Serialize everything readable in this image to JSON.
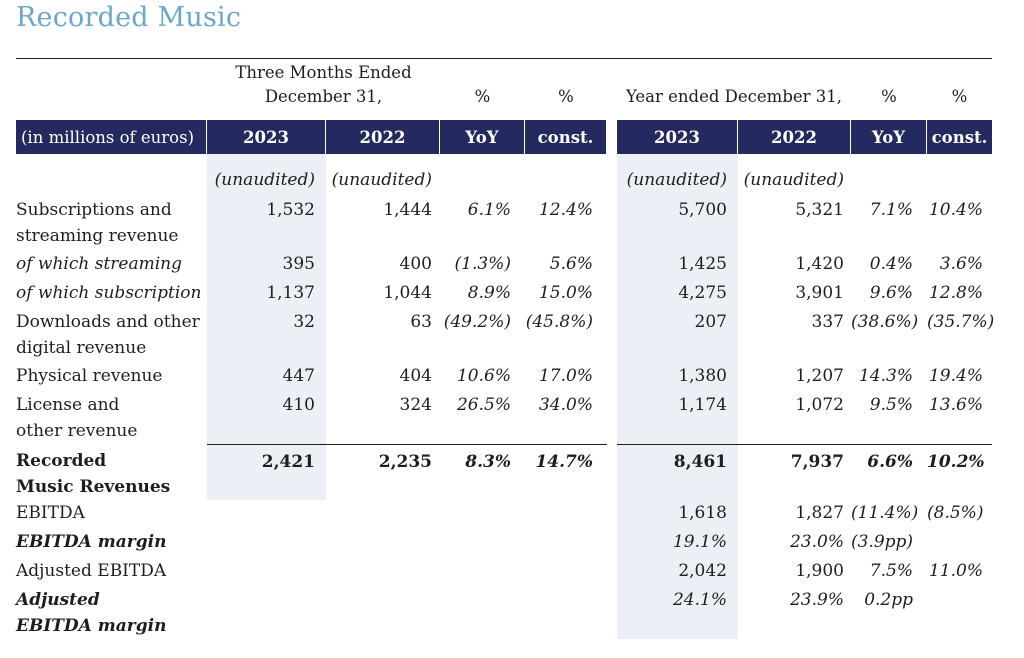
{
  "page_title": "Recorded Music",
  "colors": {
    "title_accent": "#6BA7C8",
    "header_bg": "#242A60",
    "header_text": "#FFFFFF",
    "column_shade": "#EAF0F5",
    "body_text": "#1E1E1C"
  },
  "table": {
    "unit_label": "(in millions of euros)",
    "spanners": {
      "quarter_line1": "Three Months Ended",
      "quarter_line2": "December 31,",
      "year": "Year ended December 31,",
      "pct": "%"
    },
    "columns": [
      "2023",
      "2022",
      "YoY",
      "const.",
      "2023",
      "2022",
      "YoY",
      "const."
    ],
    "rows": [
      {
        "label": "",
        "style": "unaudited",
        "cells": [
          "(unaudited)",
          "(unaudited)",
          "",
          "",
          "(unaudited)",
          "(unaudited)",
          "",
          ""
        ]
      },
      {
        "label": "Subscriptions and\nstreaming revenue",
        "style": "normal",
        "cells": [
          "1,532",
          "1,444",
          "6.1%",
          "12.4%",
          "5,700",
          "5,321",
          "7.1%",
          "10.4%"
        ]
      },
      {
        "label": "of which streaming",
        "style": "oblique",
        "cells": [
          "395",
          "400",
          "(1.3%)",
          "5.6%",
          "1,425",
          "1,420",
          "0.4%",
          "3.6%"
        ]
      },
      {
        "label": "of which subscription",
        "style": "oblique",
        "cells": [
          "1,137",
          "1,044",
          "8.9%",
          "15.0%",
          "4,275",
          "3,901",
          "9.6%",
          "12.8%"
        ]
      },
      {
        "label": "Downloads and other\ndigital revenue",
        "style": "normal",
        "cells": [
          "32",
          "63",
          "(49.2%)",
          "(45.8%)",
          "207",
          "337",
          "(38.6%)",
          "(35.7%)"
        ]
      },
      {
        "label": "Physical revenue",
        "style": "normal",
        "cells": [
          "447",
          "404",
          "10.6%",
          "17.0%",
          "1,380",
          "1,207",
          "14.3%",
          "19.4%"
        ]
      },
      {
        "label": "License and\nother revenue",
        "style": "normal",
        "cells": [
          "410",
          "324",
          "26.5%",
          "34.0%",
          "1,174",
          "1,072",
          "9.5%",
          "13.6%"
        ]
      },
      {
        "label": "Recorded\nMusic Revenues",
        "style": "total",
        "cells": [
          "2,421",
          "2,235",
          "8.3%",
          "14.7%",
          "8,461",
          "7,937",
          "6.6%",
          "10.2%"
        ]
      },
      {
        "label": "EBITDA",
        "style": "normal",
        "cells": [
          "",
          "",
          "",
          "",
          "1,618",
          "1,827",
          "(11.4%)",
          "(8.5%)"
        ]
      },
      {
        "label": "EBITDA margin",
        "style": "margin",
        "cells": [
          "",
          "",
          "",
          "",
          "19.1%",
          "23.0%",
          "(3.9pp)",
          ""
        ]
      },
      {
        "label": "Adjusted EBITDA",
        "style": "normal",
        "cells": [
          "",
          "",
          "",
          "",
          "2,042",
          "1,900",
          "7.5%",
          "11.0%"
        ]
      },
      {
        "label": "Adjusted\nEBITDA margin",
        "style": "margin",
        "cells": [
          "",
          "",
          "",
          "",
          "24.1%",
          "23.9%",
          "0.2pp",
          ""
        ]
      }
    ]
  }
}
